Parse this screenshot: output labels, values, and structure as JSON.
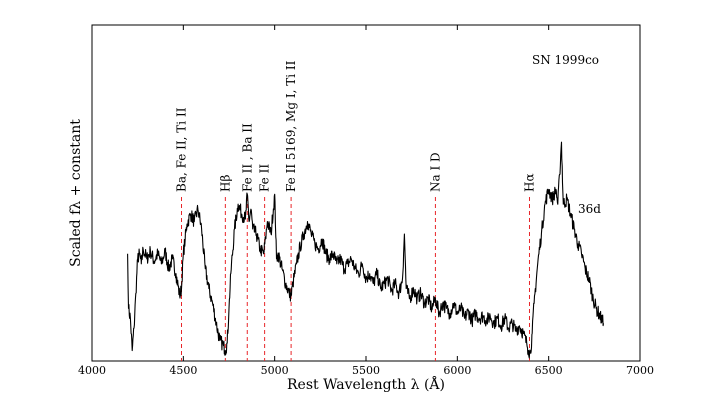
{
  "chart_data": {
    "type": "line",
    "object_label": "SN 1999co",
    "epoch_label": "36d",
    "xlabel": "Rest Wavelength λ (Å)",
    "ylabel": "Scaled fλ + constant",
    "xlim": [
      4000,
      7000
    ],
    "ylim": [
      0,
      1
    ],
    "xticks": [
      4000,
      4500,
      5000,
      5500,
      6000,
      6500,
      7000
    ],
    "line_color": "#000000",
    "marker_color": "#e8262a",
    "line_markers": [
      {
        "x": 4490,
        "label": "Ba, Fe II, Ti II"
      },
      {
        "x": 4730,
        "label": "Hβ"
      },
      {
        "x": 4850,
        "label": "Fe II , Ba II"
      },
      {
        "x": 4945,
        "label": "Fe II"
      },
      {
        "x": 5090,
        "label": "Fe II 5169, Mg I, Ti II"
      },
      {
        "x": 5880,
        "label": "Na I D"
      },
      {
        "x": 6395,
        "label": "Hα"
      }
    ],
    "series": [
      {
        "name": "SN 1999co 36d",
        "x": [
          4195,
          4200,
          4210,
          4220,
          4230,
          4240,
          4250,
          4260,
          4270,
          4280,
          4300,
          4320,
          4340,
          4360,
          4380,
          4400,
          4420,
          4440,
          4460,
          4480,
          4490,
          4500,
          4510,
          4520,
          4540,
          4560,
          4580,
          4600,
          4620,
          4640,
          4660,
          4680,
          4700,
          4720,
          4730,
          4740,
          4750,
          4760,
          4780,
          4800,
          4820,
          4840,
          4850,
          4860,
          4870,
          4880,
          4900,
          4920,
          4940,
          4950,
          4960,
          4980,
          5000,
          5010,
          5020,
          5040,
          5060,
          5080,
          5090,
          5100,
          5120,
          5140,
          5160,
          5180,
          5200,
          5220,
          5240,
          5260,
          5280,
          5300,
          5320,
          5340,
          5360,
          5380,
          5400,
          5420,
          5440,
          5460,
          5480,
          5500,
          5520,
          5540,
          5560,
          5580,
          5600,
          5620,
          5640,
          5660,
          5680,
          5700,
          5710,
          5720,
          5740,
          5760,
          5780,
          5800,
          5820,
          5840,
          5860,
          5880,
          5900,
          5920,
          5940,
          5960,
          5980,
          6000,
          6020,
          6040,
          6060,
          6080,
          6100,
          6120,
          6140,
          6160,
          6180,
          6200,
          6220,
          6240,
          6260,
          6280,
          6300,
          6320,
          6340,
          6360,
          6380,
          6390,
          6400,
          6410,
          6420,
          6440,
          6460,
          6480,
          6500,
          6520,
          6540,
          6550,
          6560,
          6570,
          6580,
          6600,
          6620,
          6640,
          6660,
          6680,
          6700,
          6720,
          6740,
          6760,
          6780,
          6800
        ],
        "y": [
          0.42,
          0.2,
          0.16,
          0.03,
          0.12,
          0.26,
          0.4,
          0.42,
          0.38,
          0.44,
          0.4,
          0.43,
          0.39,
          0.42,
          0.38,
          0.43,
          0.36,
          0.4,
          0.34,
          0.25,
          0.28,
          0.42,
          0.48,
          0.54,
          0.58,
          0.55,
          0.6,
          0.52,
          0.36,
          0.28,
          0.22,
          0.14,
          0.07,
          0.05,
          0.03,
          0.06,
          0.2,
          0.34,
          0.52,
          0.62,
          0.58,
          0.56,
          0.66,
          0.55,
          0.6,
          0.52,
          0.5,
          0.44,
          0.42,
          0.48,
          0.55,
          0.5,
          0.66,
          0.4,
          0.42,
          0.36,
          0.3,
          0.26,
          0.25,
          0.3,
          0.38,
          0.45,
          0.5,
          0.55,
          0.5,
          0.46,
          0.44,
          0.48,
          0.42,
          0.4,
          0.42,
          0.38,
          0.4,
          0.36,
          0.38,
          0.4,
          0.36,
          0.34,
          0.38,
          0.32,
          0.34,
          0.3,
          0.34,
          0.28,
          0.3,
          0.32,
          0.27,
          0.3,
          0.26,
          0.32,
          0.5,
          0.28,
          0.24,
          0.28,
          0.24,
          0.26,
          0.22,
          0.24,
          0.2,
          0.24,
          0.18,
          0.22,
          0.2,
          0.18,
          0.22,
          0.18,
          0.2,
          0.16,
          0.19,
          0.15,
          0.18,
          0.16,
          0.17,
          0.15,
          0.17,
          0.14,
          0.16,
          0.13,
          0.16,
          0.12,
          0.14,
          0.11,
          0.13,
          0.1,
          0.06,
          0.03,
          0.02,
          0.1,
          0.22,
          0.38,
          0.5,
          0.62,
          0.68,
          0.64,
          0.68,
          0.62,
          0.74,
          0.87,
          0.62,
          0.64,
          0.58,
          0.52,
          0.46,
          0.42,
          0.36,
          0.32,
          0.25,
          0.2,
          0.17,
          0.14
        ]
      }
    ]
  }
}
